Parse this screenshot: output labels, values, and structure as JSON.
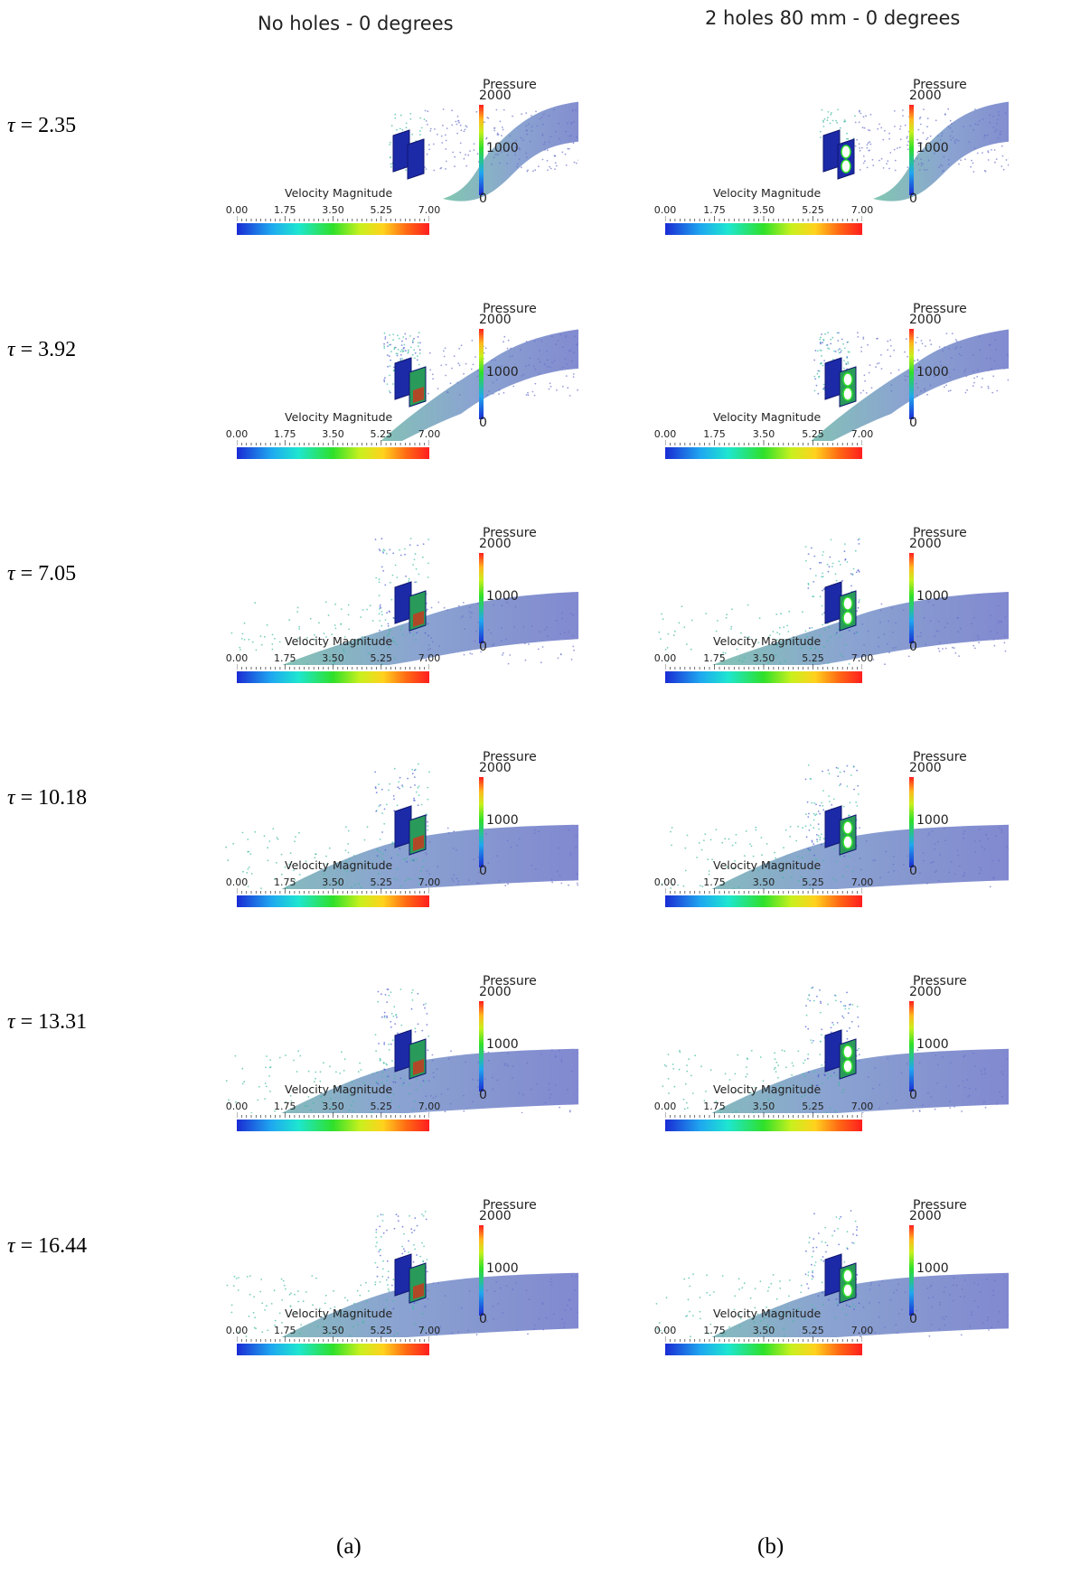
{
  "columns": [
    {
      "title": "No holes - 0 degrees",
      "sub_label": "(a)",
      "holes": 0
    },
    {
      "title": "2 holes 80 mm - 0 degrees",
      "sub_label": "(b)",
      "holes": 2
    }
  ],
  "rows": [
    {
      "tau_symbol": "τ",
      "tau_value": "= 2.35",
      "stage": 1
    },
    {
      "tau_symbol": "τ",
      "tau_value": "= 3.92",
      "stage": 2
    },
    {
      "tau_symbol": "τ",
      "tau_value": "= 7.05",
      "stage": 3
    },
    {
      "tau_symbol": "τ",
      "tau_value": "= 10.18",
      "stage": 4
    },
    {
      "tau_symbol": "τ",
      "tau_value": "= 13.31",
      "stage": 5
    },
    {
      "tau_symbol": "τ",
      "tau_value": "= 16.44",
      "stage": 6
    }
  ],
  "velocity_legend": {
    "title": "Velocity Magnitude",
    "ticks": [
      "0.00",
      "1.75",
      "3.50",
      "5.25",
      "7.00"
    ],
    "colors": [
      "#1a2bd4",
      "#1fa8f0",
      "#1ee6d0",
      "#2fe02a",
      "#c8f01e",
      "#ffd21e",
      "#ff6a14",
      "#ff1e1e"
    ]
  },
  "pressure_legend": {
    "title": "Pressure",
    "ticks": [
      "2000",
      "1000",
      "0"
    ]
  },
  "colors": {
    "flow_body": "#6b73c9",
    "flow_spray": "#3fb8a0",
    "plate": "#1c2aa8"
  }
}
